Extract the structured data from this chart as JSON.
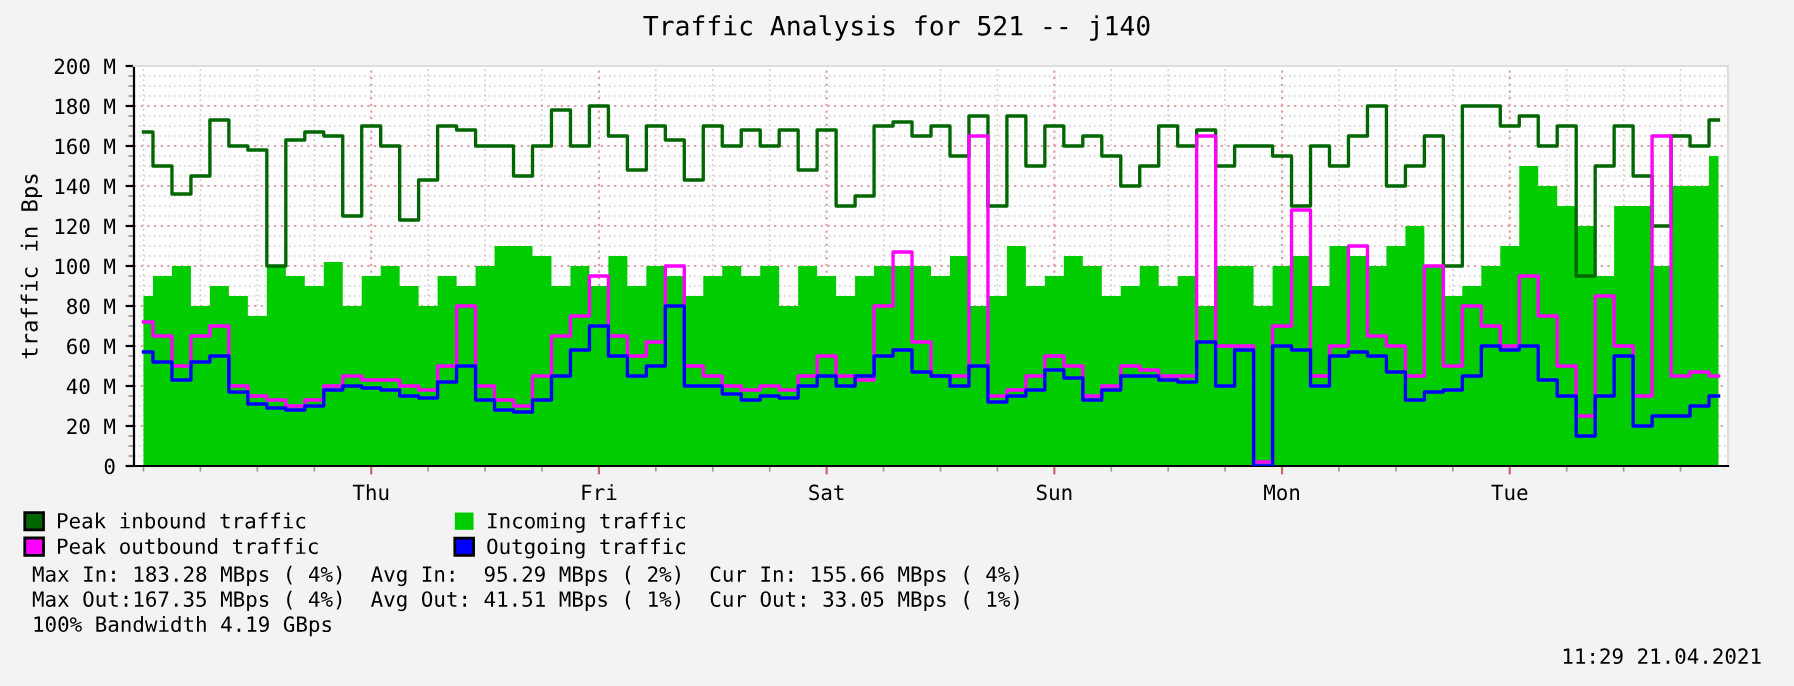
{
  "chart_data": {
    "type": "step",
    "title": "Traffic Analysis for 521 -- j140",
    "ylabel": "traffic in Bps",
    "categories": [
      null,
      null,
      null,
      null,
      null,
      null,
      null,
      null,
      null,
      null,
      null,
      null,
      "Thu",
      null,
      null,
      null,
      null,
      null,
      null,
      null,
      null,
      null,
      null,
      null,
      "Fri",
      null,
      null,
      null,
      null,
      null,
      null,
      null,
      null,
      null,
      null,
      null,
      "Sat",
      null,
      null,
      null,
      null,
      null,
      null,
      null,
      null,
      null,
      null,
      null,
      "Sun",
      null,
      null,
      null,
      null,
      null,
      null,
      null,
      null,
      null,
      null,
      null,
      "Mon",
      null,
      null,
      null,
      null,
      null,
      null,
      null,
      null,
      null,
      null,
      null,
      "Tue",
      null,
      null,
      null,
      null,
      null,
      null,
      null,
      null,
      null,
      null,
      null
    ],
    "series": [
      {
        "name": "Incoming traffic",
        "type": "area",
        "color": "#00cc00",
        "values": [
          85,
          95,
          100,
          80,
          90,
          85,
          75,
          100,
          95,
          90,
          102,
          80,
          95,
          100,
          90,
          80,
          95,
          90,
          100,
          110,
          110,
          105,
          90,
          100,
          90,
          105,
          90,
          100,
          95,
          85,
          95,
          100,
          95,
          100,
          80,
          100,
          95,
          85,
          95,
          100,
          100,
          100,
          95,
          105,
          80,
          85,
          110,
          90,
          95,
          105,
          100,
          85,
          90,
          100,
          90,
          95,
          80,
          100,
          100,
          80,
          100,
          105,
          90,
          110,
          105,
          100,
          110,
          120,
          100,
          85,
          90,
          100,
          110,
          150,
          140,
          130,
          120,
          95,
          130,
          130,
          100,
          140,
          140,
          155
        ]
      },
      {
        "name": "Peak inbound traffic",
        "color": "#006600",
        "values": [
          167,
          150,
          136,
          145,
          173,
          160,
          158,
          100,
          163,
          167,
          165,
          125,
          170,
          160,
          123,
          143,
          170,
          168,
          160,
          160,
          145,
          160,
          178,
          160,
          180,
          165,
          148,
          170,
          163,
          143,
          170,
          160,
          168,
          160,
          168,
          148,
          168,
          130,
          135,
          170,
          172,
          165,
          170,
          155,
          175,
          130,
          175,
          150,
          170,
          160,
          165,
          155,
          140,
          150,
          170,
          160,
          168,
          150,
          160,
          160,
          155,
          130,
          160,
          150,
          165,
          180,
          140,
          150,
          165,
          100,
          180,
          180,
          170,
          175,
          160,
          170,
          95,
          150,
          170,
          145,
          120,
          165,
          160,
          173
        ]
      },
      {
        "name": "Peak outbound traffic",
        "color": "#ff00ff",
        "values": [
          72,
          65,
          50,
          65,
          70,
          40,
          35,
          33,
          30,
          33,
          40,
          45,
          43,
          43,
          40,
          38,
          50,
          80,
          40,
          33,
          30,
          45,
          65,
          75,
          95,
          65,
          55,
          62,
          100,
          50,
          45,
          40,
          38,
          40,
          38,
          45,
          55,
          45,
          43,
          80,
          107,
          62,
          45,
          45,
          165,
          35,
          38,
          45,
          55,
          50,
          35,
          40,
          50,
          48,
          45,
          45,
          165,
          60,
          60,
          2,
          70,
          128,
          45,
          60,
          110,
          65,
          60,
          45,
          100,
          50,
          80,
          70,
          60,
          95,
          75,
          50,
          25,
          85,
          60,
          35,
          165,
          45,
          47,
          45
        ]
      },
      {
        "name": "Outgoing traffic",
        "color": "#0000ff",
        "values": [
          57,
          52,
          43,
          52,
          55,
          37,
          31,
          29,
          28,
          30,
          38,
          40,
          39,
          38,
          35,
          34,
          42,
          50,
          33,
          28,
          27,
          33,
          45,
          58,
          70,
          55,
          45,
          50,
          80,
          40,
          40,
          36,
          33,
          35,
          34,
          40,
          45,
          40,
          45,
          55,
          58,
          47,
          45,
          40,
          50,
          32,
          35,
          38,
          48,
          44,
          33,
          38,
          45,
          45,
          43,
          42,
          62,
          40,
          58,
          0,
          60,
          58,
          40,
          55,
          57,
          55,
          47,
          33,
          37,
          38,
          45,
          60,
          58,
          60,
          43,
          35,
          15,
          35,
          55,
          20,
          25,
          25,
          30,
          35
        ]
      }
    ],
    "ylim": [
      0,
      200
    ],
    "yticks": [
      {
        "value": 0,
        "label": "0"
      },
      {
        "value": 20,
        "label": "20 M"
      },
      {
        "value": 40,
        "label": "40 M"
      },
      {
        "value": 60,
        "label": "60 M"
      },
      {
        "value": 80,
        "label": "80 M"
      },
      {
        "value": 100,
        "label": "100 M"
      },
      {
        "value": 120,
        "label": "120 M"
      },
      {
        "value": 140,
        "label": "140 M"
      },
      {
        "value": 160,
        "label": "160 M"
      },
      {
        "value": 180,
        "label": "180 M"
      },
      {
        "value": 200,
        "label": "200 M"
      }
    ],
    "grid": true,
    "legend": "bottom",
    "annotations": [
      "Max In: 183.28 MBps ( 4%)  Avg In:  95.29 MBps ( 2%)  Cur In: 155.66 MBps ( 4%)",
      "Max Out:167.35 MBps ( 4%)  Avg Out: 41.51 MBps ( 1%)  Cur Out: 33.05 MBps ( 1%)",
      "100% Bandwidth 4.19 GBps",
      "11:29 21.04.2021"
    ]
  }
}
